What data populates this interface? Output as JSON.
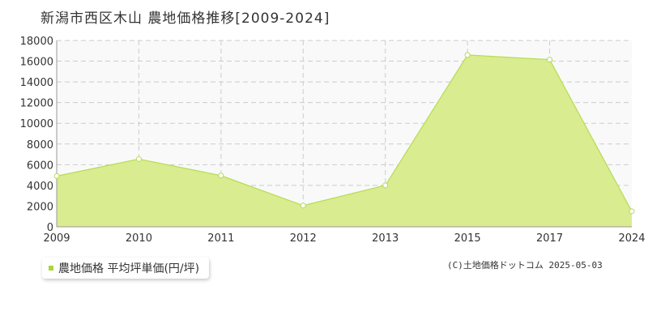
{
  "chart_data": {
    "type": "area",
    "title": "新潟市西区木山 農地価格推移[2009-2024]",
    "x": [
      "2009",
      "2010",
      "2011",
      "2012",
      "2013",
      "2015",
      "2017",
      "2024"
    ],
    "series": [
      {
        "name": "農地価格 平均坪単価(円/坪)",
        "values": [
          4900,
          6550,
          4950,
          2050,
          4000,
          16600,
          16150,
          1500
        ]
      }
    ],
    "ylim": [
      0,
      18000
    ],
    "yticks": [
      0,
      2000,
      4000,
      6000,
      8000,
      10000,
      12000,
      14000,
      16000,
      18000
    ],
    "grid": true,
    "legend_position": "bottom-left",
    "colors": {
      "fill": "#d9ec8f",
      "line": "#b5dc54",
      "marker_fill": "#ffffff",
      "grid": "#cccccc",
      "plot_bg": "#f9f9f9",
      "legend_swatch": "#a8d63a"
    }
  },
  "credit": "(C)土地価格ドットコム 2025-05-03"
}
